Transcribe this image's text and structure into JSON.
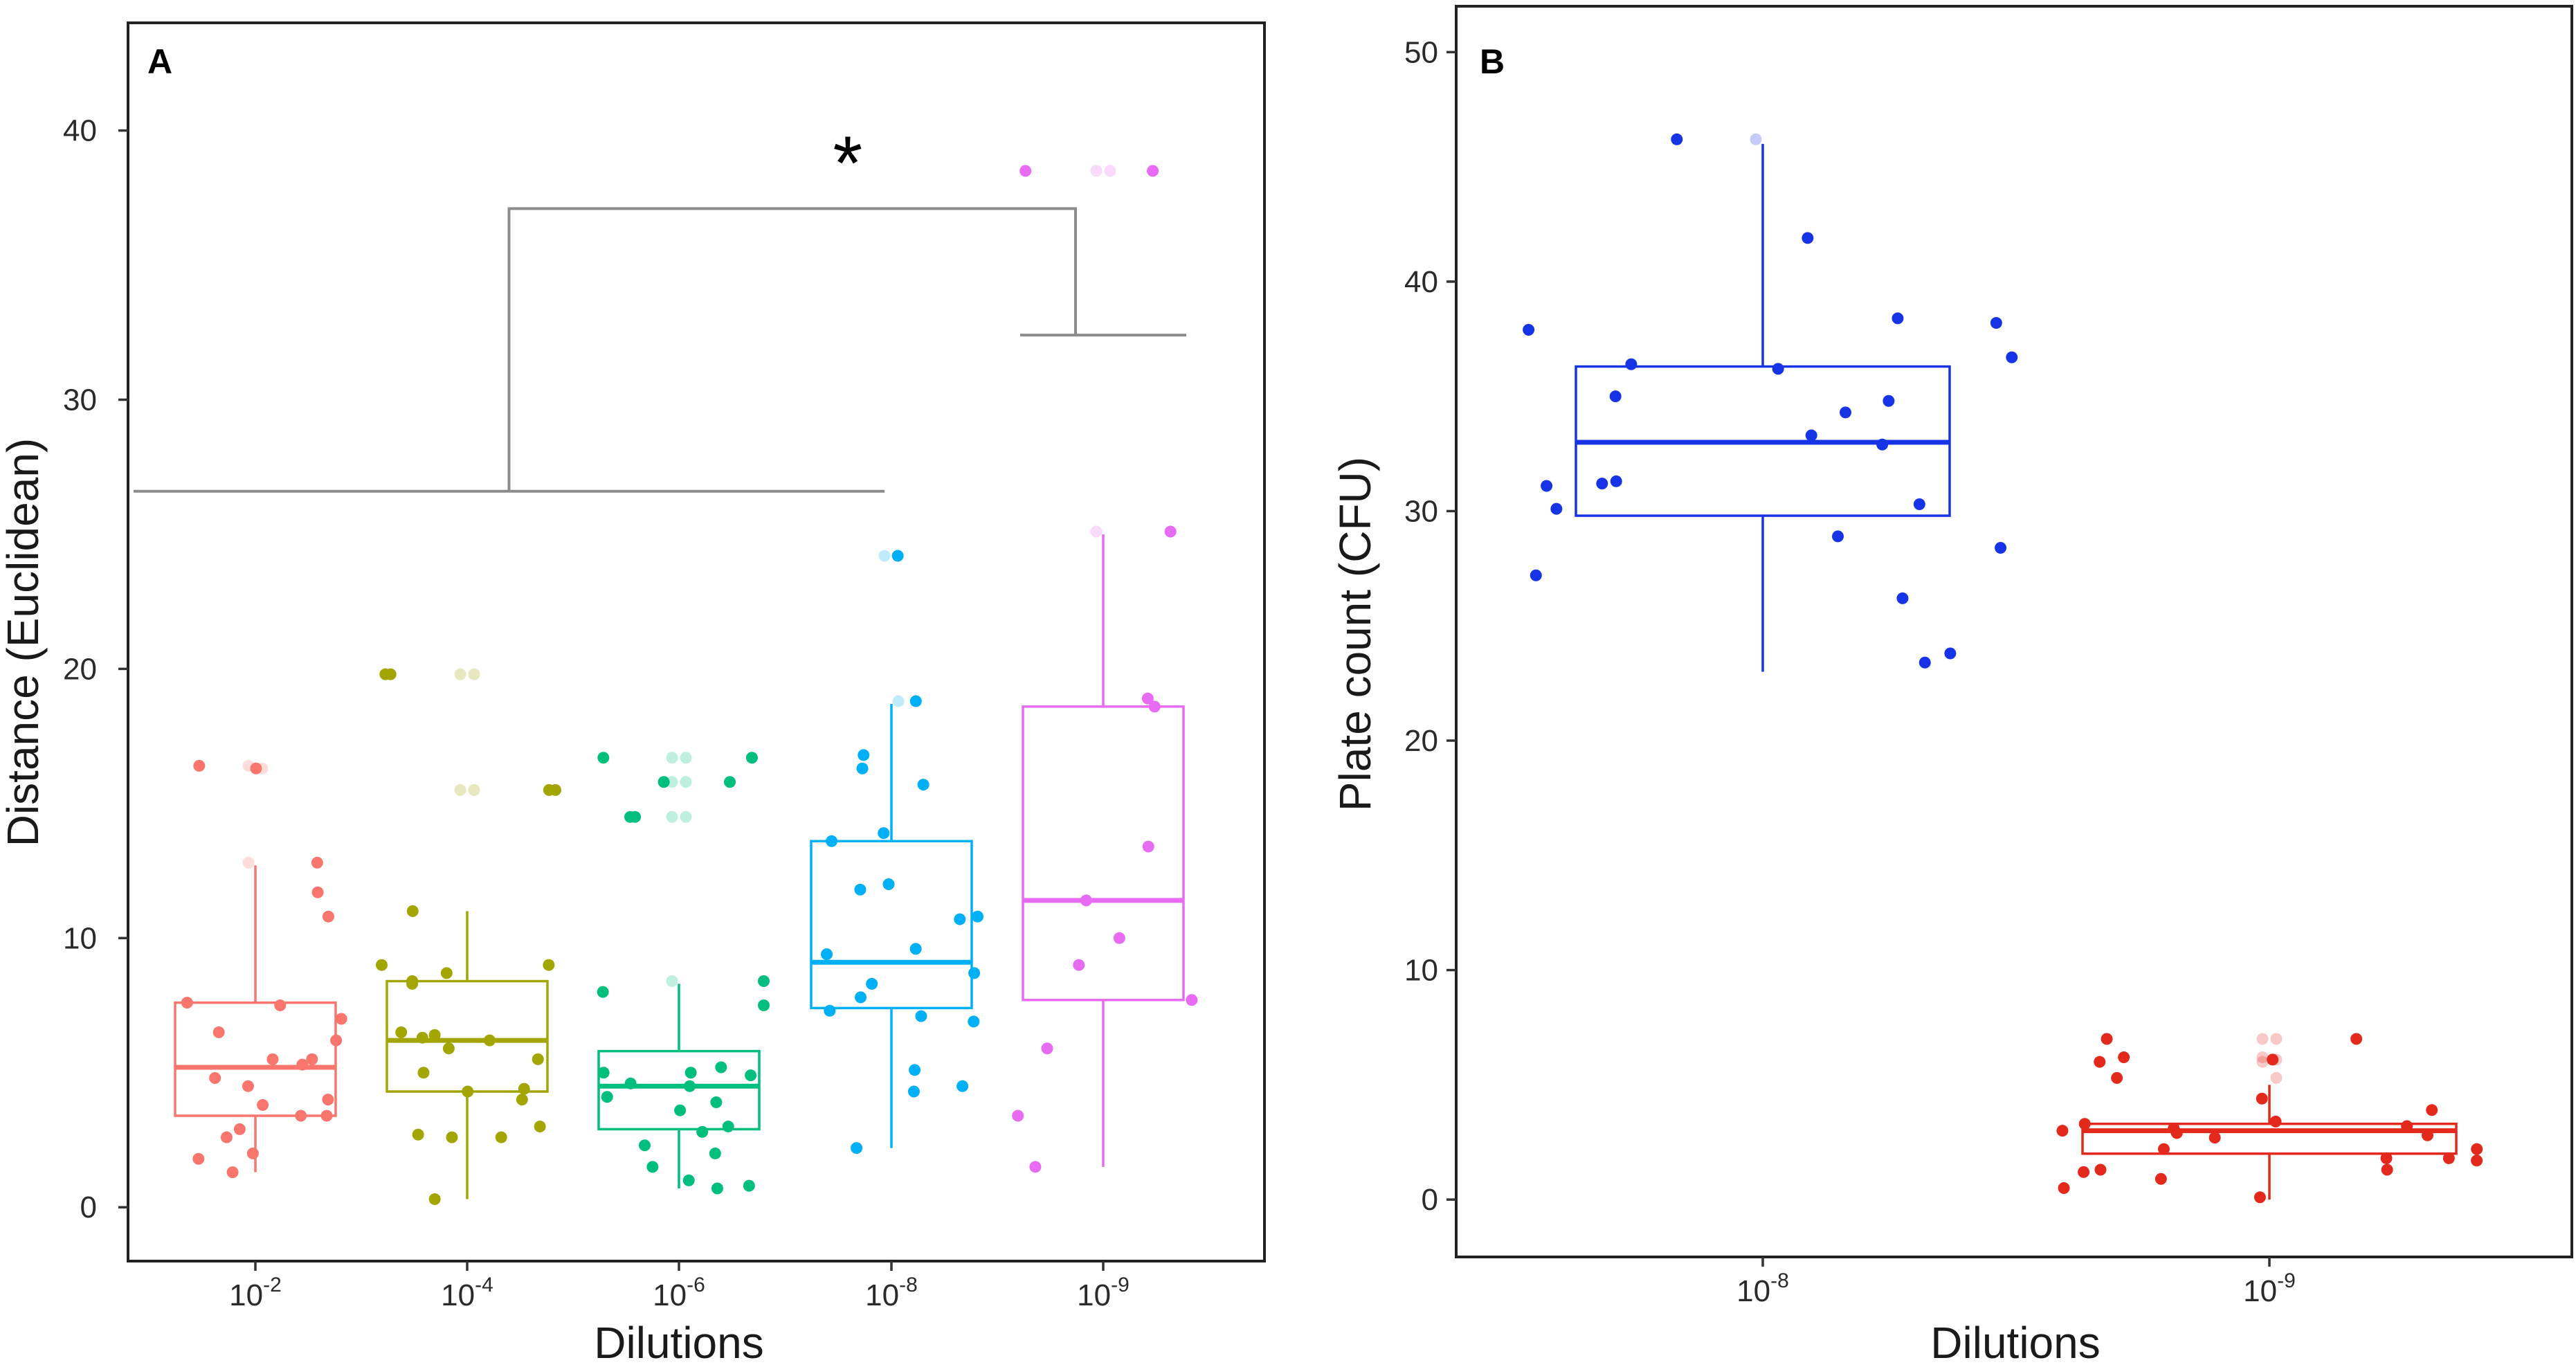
{
  "chart_data": [
    {
      "type": "box",
      "panel_label": "A",
      "xlabel": "Dilutions",
      "ylabel": "Distance (Euclidean)",
      "ylim": [
        -2,
        44
      ],
      "yticks": [
        0,
        10,
        20,
        30,
        40
      ],
      "grid": false,
      "categories": [
        {
          "base": "10",
          "exp": "-2"
        },
        {
          "base": "10",
          "exp": "-4"
        },
        {
          "base": "10",
          "exp": "-6"
        },
        {
          "base": "10",
          "exp": "-8"
        },
        {
          "base": "10",
          "exp": "-9"
        }
      ],
      "series": [
        {
          "name": "10^-2",
          "color": "#F8766D",
          "box": {
            "whisker_low": 1.3,
            "q1": 3.4,
            "median": 5.2,
            "q3": 7.6,
            "whisker_high": 12.7
          },
          "points": [
            16.4,
            16.3,
            12.8,
            11.7,
            10.8,
            7.6,
            7.5,
            7.0,
            6.5,
            6.2,
            5.5,
            5.5,
            5.3,
            4.8,
            4.5,
            4.0,
            3.8,
            3.4,
            3.4,
            2.9,
            2.6,
            2.0,
            1.8,
            1.3
          ]
        },
        {
          "name": "10^-4",
          "color": "#A3A500",
          "box": {
            "whisker_low": 0.3,
            "q1": 4.3,
            "median": 6.2,
            "q3": 8.4,
            "whisker_high": 11.0
          },
          "points": [
            19.8,
            19.8,
            15.5,
            15.5,
            11.0,
            9.0,
            9.0,
            8.7,
            8.4,
            8.3,
            6.5,
            6.4,
            6.3,
            6.2,
            5.9,
            5.5,
            5.0,
            4.4,
            4.3,
            4.0,
            3.0,
            2.7,
            2.6,
            2.6,
            0.3
          ]
        },
        {
          "name": "10^-6",
          "color": "#00BF7D",
          "box": {
            "whisker_low": 0.7,
            "q1": 2.9,
            "median": 4.5,
            "q3": 5.8,
            "whisker_high": 8.3
          },
          "points": [
            16.7,
            16.7,
            15.8,
            15.8,
            14.5,
            14.5,
            8.4,
            8.0,
            7.5,
            5.2,
            5.0,
            5.0,
            4.9,
            4.6,
            4.5,
            4.1,
            3.9,
            3.6,
            3.0,
            2.8,
            2.3,
            2.0,
            1.5,
            1.0,
            0.8,
            0.7
          ]
        },
        {
          "name": "10^-8",
          "color": "#00B0F6",
          "box": {
            "whisker_low": 2.2,
            "q1": 7.4,
            "median": 9.1,
            "q3": 13.6,
            "whisker_high": 18.7
          },
          "points": [
            24.2,
            18.8,
            16.8,
            16.3,
            15.7,
            13.9,
            13.6,
            12.0,
            11.8,
            10.8,
            10.7,
            9.6,
            9.4,
            8.7,
            8.3,
            7.8,
            7.3,
            7.1,
            6.9,
            5.1,
            4.5,
            4.3,
            2.2
          ]
        },
        {
          "name": "10^-9",
          "color": "#E76BF3",
          "box": {
            "whisker_low": 1.5,
            "q1": 7.7,
            "median": 11.4,
            "q3": 18.6,
            "whisker_high": 25.0
          },
          "points": [
            38.5,
            38.5,
            25.1,
            18.9,
            18.6,
            13.4,
            11.4,
            10.0,
            9.0,
            7.7,
            5.9,
            3.4,
            1.5
          ]
        }
      ],
      "bracket": {
        "label": "*",
        "left_group": [
          "10^-2",
          "10^-4",
          "10^-6",
          "10^-8"
        ],
        "right_group": [
          "10^-9"
        ],
        "left_level": 26.6,
        "right_level": 32.4,
        "top_level": 37.1
      }
    },
    {
      "type": "box",
      "panel_label": "B",
      "xlabel": "Dilutions",
      "ylabel": "Plate count (CFU)",
      "ylim": [
        -2.5,
        52
      ],
      "yticks": [
        0,
        10,
        20,
        30,
        40,
        50
      ],
      "grid": false,
      "categories": [
        {
          "base": "10",
          "exp": "-8"
        },
        {
          "base": "10",
          "exp": "-9"
        }
      ],
      "series": [
        {
          "name": "10^-8",
          "color": "#1733E6",
          "box": {
            "whisker_low": 23,
            "q1": 29.8,
            "median": 33,
            "q3": 36.3,
            "whisker_high": 46
          },
          "points": [
            46.2,
            41.9,
            38.4,
            38.2,
            37.9,
            36.7,
            36.4,
            36.2,
            35.0,
            34.8,
            34.3,
            33.3,
            32.9,
            31.3,
            31.2,
            31.1,
            30.3,
            30.1,
            28.9,
            28.4,
            27.2,
            26.2,
            23.8,
            23.4
          ]
        },
        {
          "name": "10^-9",
          "color": "#E3281C",
          "box": {
            "whisker_low": 0,
            "q1": 2,
            "median": 3,
            "q3": 3.3,
            "whisker_high": 5
          },
          "points": [
            7.0,
            7.0,
            6.2,
            6.1,
            6.0,
            5.3,
            4.4,
            3.9,
            3.4,
            3.3,
            3.2,
            3.1,
            3.0,
            2.9,
            2.8,
            2.7,
            2.2,
            2.2,
            1.8,
            1.8,
            1.7,
            1.3,
            1.3,
            1.2,
            0.9,
            0.5,
            0.1
          ]
        }
      ]
    }
  ]
}
